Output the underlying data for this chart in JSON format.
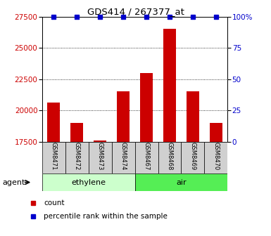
{
  "title": "GDS414 / 267377_at",
  "samples": [
    "GSM8471",
    "GSM8472",
    "GSM8473",
    "GSM8474",
    "GSM8467",
    "GSM8468",
    "GSM8469",
    "GSM8470"
  ],
  "counts": [
    20600,
    19000,
    17600,
    21500,
    23000,
    26500,
    21500,
    19000
  ],
  "percentiles": [
    100,
    100,
    100,
    100,
    100,
    100,
    100,
    100
  ],
  "groups": [
    {
      "label": "ethylene",
      "indices": [
        0,
        1,
        2,
        3
      ],
      "color": "#ccffcc"
    },
    {
      "label": "air",
      "indices": [
        4,
        5,
        6,
        7
      ],
      "color": "#55ee55"
    }
  ],
  "agent_label": "agent",
  "bar_color": "#cc0000",
  "dot_color": "#0000cc",
  "ylim_left": [
    17500,
    27500
  ],
  "ylim_right": [
    0,
    100
  ],
  "yticks_left": [
    17500,
    20000,
    22500,
    25000,
    27500
  ],
  "yticks_right": [
    0,
    25,
    50,
    75,
    100
  ],
  "ylabel_left_color": "#cc0000",
  "ylabel_right_color": "#0000cc",
  "background_color": "#ffffff",
  "legend_count_label": "count",
  "legend_percentile_label": "percentile rank within the sample",
  "cell_color": "#d0d0d0"
}
